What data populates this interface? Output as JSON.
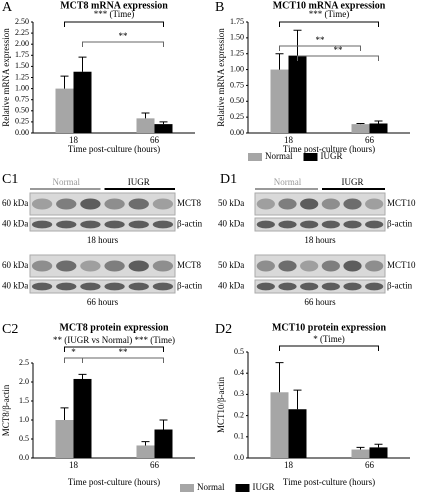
{
  "chart_data": [
    {
      "type": "bar",
      "panel": "A",
      "title": "MCT8 mRNA expression",
      "y_label": "Relative mRNA expression",
      "x_label": "Time post-culture (hours)",
      "categories": [
        "18",
        "66"
      ],
      "series": [
        {
          "color": "#a6a6a6",
          "values": [
            1.0,
            0.33
          ],
          "errors": [
            0.28,
            0.12
          ]
        },
        {
          "color": "#000000",
          "values": [
            1.38,
            0.2
          ],
          "errors": [
            0.33,
            0.05
          ]
        }
      ],
      "ylim": [
        0,
        2.5
      ],
      "yticks": [
        {
          "value": 0,
          "label": "0.00"
        },
        0.25,
        {
          "value": 0.5,
          "label": "0.50"
        },
        0.75,
        {
          "value": 1,
          "label": "1.00"
        },
        1.25,
        {
          "value": 1.5,
          "label": "1.50"
        },
        1.75,
        {
          "value": 2,
          "label": "2.00"
        },
        2.25,
        {
          "value": 2.5,
          "label": "2.50"
        }
      ],
      "annotations": [
        "*** (Time)",
        "**"
      ]
    },
    {
      "type": "bar",
      "panel": "B",
      "title": "MCT10 mRNA expression",
      "y_label": "Relative mRNA expression",
      "x_label": "Time post-culture (hours)",
      "categories": [
        "18",
        "66"
      ],
      "series": [
        {
          "name": "Normal",
          "color": "#a6a6a6",
          "values": [
            1.0,
            0.14
          ],
          "errors": [
            0.25,
            0.01
          ]
        },
        {
          "name": "IUGR",
          "color": "#000000",
          "values": [
            1.22,
            0.15
          ],
          "errors": [
            0.4,
            0.04
          ]
        }
      ],
      "ylim": [
        0,
        1.75
      ],
      "yticks": [
        {
          "value": 0,
          "label": "0.00"
        },
        0.25,
        {
          "value": 0.5,
          "label": "0.50"
        },
        0.75,
        {
          "value": 1,
          "label": "1.00"
        },
        1.25,
        {
          "value": 1.5,
          "label": "1.50"
        },
        1.75
      ],
      "annotations": [
        "*** (Time)",
        "**",
        "**"
      ]
    },
    {
      "type": "bar",
      "panel": "C2",
      "title": "MCT8 protein expression",
      "y_label": "MCT8/β-actin",
      "x_label": "Time post-culture (hours)",
      "categories": [
        "18",
        "66"
      ],
      "series": [
        {
          "name": "Normal",
          "color": "#a6a6a6",
          "values": [
            1.0,
            0.33
          ],
          "errors": [
            0.32,
            0.1
          ]
        },
        {
          "name": "IUGR",
          "color": "#000000",
          "values": [
            2.08,
            0.75
          ],
          "errors": [
            0.12,
            0.25
          ]
        }
      ],
      "ylim": [
        0,
        2.5
      ],
      "yticks": [
        {
          "value": 0,
          "label": "0.0"
        },
        0.5,
        {
          "value": 1,
          "label": "1.0"
        },
        1.5,
        {
          "value": 2,
          "label": "2.0"
        },
        2.5
      ],
      "annotations": [
        "** (IUGR vs Normal) *** (Time)",
        "*",
        "**"
      ]
    },
    {
      "type": "bar",
      "panel": "D2",
      "title": "MCT10 protein expression",
      "y_label": "MCT10/β-actin",
      "x_label": "Time post-culture (hours)",
      "categories": [
        "18",
        "66"
      ],
      "series": [
        {
          "color": "#a6a6a6",
          "values": [
            0.31,
            0.04
          ],
          "errors": [
            0.14,
            0.01
          ]
        },
        {
          "color": "#000000",
          "values": [
            0.23,
            0.05
          ],
          "errors": [
            0.09,
            0.015
          ]
        }
      ],
      "ylim": [
        0,
        0.5
      ],
      "yticks": [
        {
          "value": 0,
          "label": "0.0"
        },
        0.1,
        0.2,
        0.3,
        0.4,
        0.5
      ],
      "annotations": [
        "* (Time)"
      ]
    }
  ],
  "blots": [
    {
      "panel": "C1",
      "groups": [
        "Normal",
        "IUGR"
      ],
      "rows": [
        {
          "caption": "18 hours",
          "bands": [
            {
              "size": "60 kDa",
              "protein": "MCT8"
            },
            {
              "size": "40 kDa",
              "protein": "β-actin"
            }
          ]
        },
        {
          "caption": "66 hours",
          "bands": [
            {
              "size": "60 kDa",
              "protein": "MCT8"
            },
            {
              "size": "40 kDa",
              "protein": "β-actin"
            }
          ]
        }
      ]
    },
    {
      "panel": "D1",
      "groups": [
        "Normal",
        "IUGR"
      ],
      "rows": [
        {
          "caption": "18 hours",
          "bands": [
            {
              "size": "50 kDa",
              "protein": "MCT10"
            },
            {
              "size": "40 kDa",
              "protein": "β-actin"
            }
          ]
        },
        {
          "caption": "66 hours",
          "bands": [
            {
              "size": "50 kDa",
              "protein": "MCT10"
            },
            {
              "size": "40 kDa",
              "protein": "β-actin"
            }
          ]
        }
      ]
    }
  ]
}
